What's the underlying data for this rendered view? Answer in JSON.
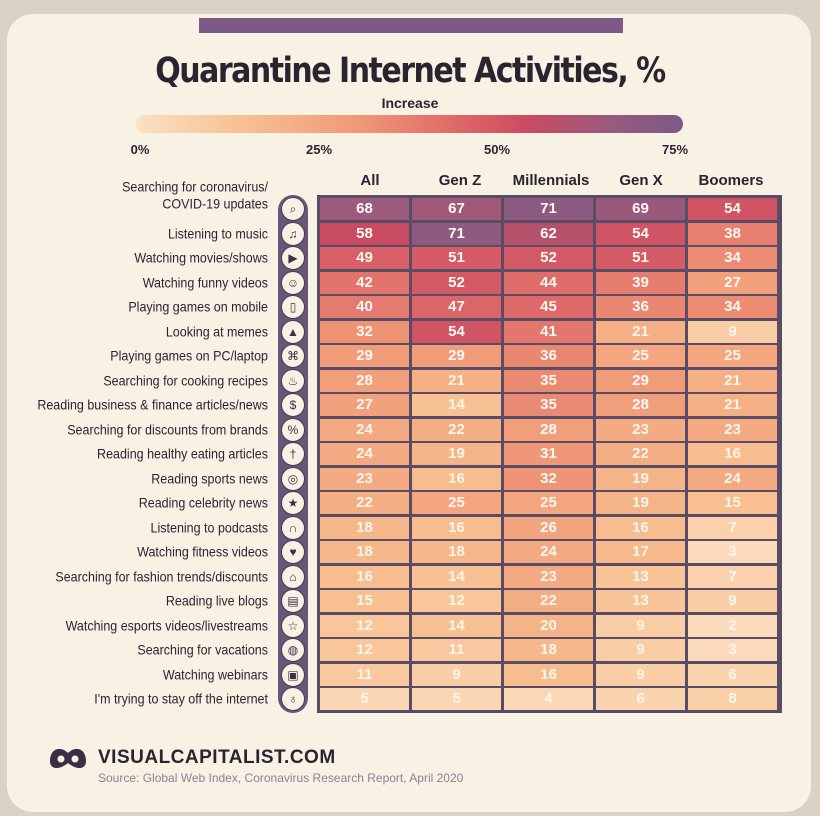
{
  "chart_data": {
    "type": "heatmap",
    "title": "Quarantine Internet Activities, %",
    "legend": {
      "title": "Increase",
      "ticks": [
        "0%",
        "25%",
        "50%",
        "75%"
      ],
      "tick_values": [
        0,
        25,
        50,
        75
      ]
    },
    "columns": [
      "All",
      "Gen Z",
      "Millennials",
      "Gen X",
      "Boomers"
    ],
    "rows": [
      {
        "label": "Searching for coronavirus/",
        "label2": "COVID-19 updates",
        "icon": "magnifier-icon",
        "glyph": "⌕",
        "values": [
          68,
          67,
          71,
          69,
          54
        ]
      },
      {
        "label": "Listening to music",
        "icon": "music-note-icon",
        "glyph": "♫",
        "values": [
          58,
          71,
          62,
          54,
          38
        ]
      },
      {
        "label": "Watching movies/shows",
        "icon": "play-screen-icon",
        "glyph": "▶",
        "values": [
          49,
          51,
          52,
          51,
          34
        ]
      },
      {
        "label": "Watching funny videos",
        "icon": "smiley-video-icon",
        "glyph": "☺",
        "values": [
          42,
          52,
          44,
          39,
          27
        ]
      },
      {
        "label": "Playing games on mobile",
        "icon": "mobile-game-icon",
        "glyph": "▯",
        "values": [
          40,
          47,
          45,
          36,
          34
        ]
      },
      {
        "label": "Looking at memes",
        "icon": "image-icon",
        "glyph": "▲",
        "values": [
          32,
          54,
          41,
          21,
          9
        ]
      },
      {
        "label": "Playing games on PC/laptop",
        "icon": "gamepad-icon",
        "glyph": "⌘",
        "values": [
          29,
          29,
          36,
          25,
          25
        ]
      },
      {
        "label": "Searching for cooking recipes",
        "icon": "cooking-pot-icon",
        "glyph": "♨",
        "values": [
          28,
          21,
          35,
          29,
          21
        ]
      },
      {
        "label": "Reading business & finance articles/news",
        "icon": "finance-article-icon",
        "glyph": "$",
        "values": [
          27,
          14,
          35,
          28,
          21
        ]
      },
      {
        "label": "Searching for discounts from brands",
        "icon": "price-tag-icon",
        "glyph": "%",
        "values": [
          24,
          22,
          28,
          23,
          23
        ]
      },
      {
        "label": "Reading healthy eating articles",
        "icon": "fork-knife-icon",
        "glyph": "†",
        "values": [
          24,
          19,
          31,
          22,
          16
        ]
      },
      {
        "label": "Reading sports news",
        "icon": "ball-icon",
        "glyph": "◎",
        "values": [
          23,
          16,
          32,
          19,
          24
        ]
      },
      {
        "label": "Reading celebrity news",
        "icon": "star-page-icon",
        "glyph": "★",
        "values": [
          22,
          25,
          25,
          19,
          15
        ]
      },
      {
        "label": "Listening to podcasts",
        "icon": "headphones-icon",
        "glyph": "∩",
        "values": [
          18,
          16,
          26,
          16,
          7
        ]
      },
      {
        "label": "Watching fitness videos",
        "icon": "fitness-icon",
        "glyph": "♥",
        "values": [
          18,
          18,
          24,
          17,
          3
        ]
      },
      {
        "label": "Searching for fashion trends/discounts",
        "icon": "shirt-icon",
        "glyph": "⌂",
        "values": [
          16,
          14,
          23,
          13,
          7
        ]
      },
      {
        "label": "Reading live blogs",
        "icon": "tablet-icon",
        "glyph": "▤",
        "values": [
          15,
          12,
          22,
          13,
          9
        ]
      },
      {
        "label": "Watching esports videos/livestreams",
        "icon": "trophy-icon",
        "glyph": "☆",
        "values": [
          12,
          14,
          20,
          9,
          2
        ]
      },
      {
        "label": "Searching for vacations",
        "icon": "globe-icon",
        "glyph": "◍",
        "values": [
          12,
          11,
          18,
          9,
          3
        ]
      },
      {
        "label": "Watching webinars",
        "icon": "webinar-icon",
        "glyph": "▣",
        "values": [
          11,
          9,
          16,
          9,
          6
        ]
      },
      {
        "label": "I'm trying to stay off the internet",
        "icon": "meditation-icon",
        "glyph": "♁",
        "values": [
          5,
          5,
          4,
          6,
          8
        ]
      }
    ]
  },
  "colors": {
    "accent": "#7d5a86",
    "scale": [
      "#fbe1c4",
      "#f8bf90",
      "#f09a77",
      "#e06a69",
      "#c84b62",
      "#9c5a7c",
      "#7a5a86"
    ]
  },
  "footer": {
    "brand": "VISUALCAPITALIST.COM",
    "source": "Source: Global Web Index, Coronavirus Research Report, April 2020",
    "logo_icon": "visual-capitalist-logo-icon"
  }
}
